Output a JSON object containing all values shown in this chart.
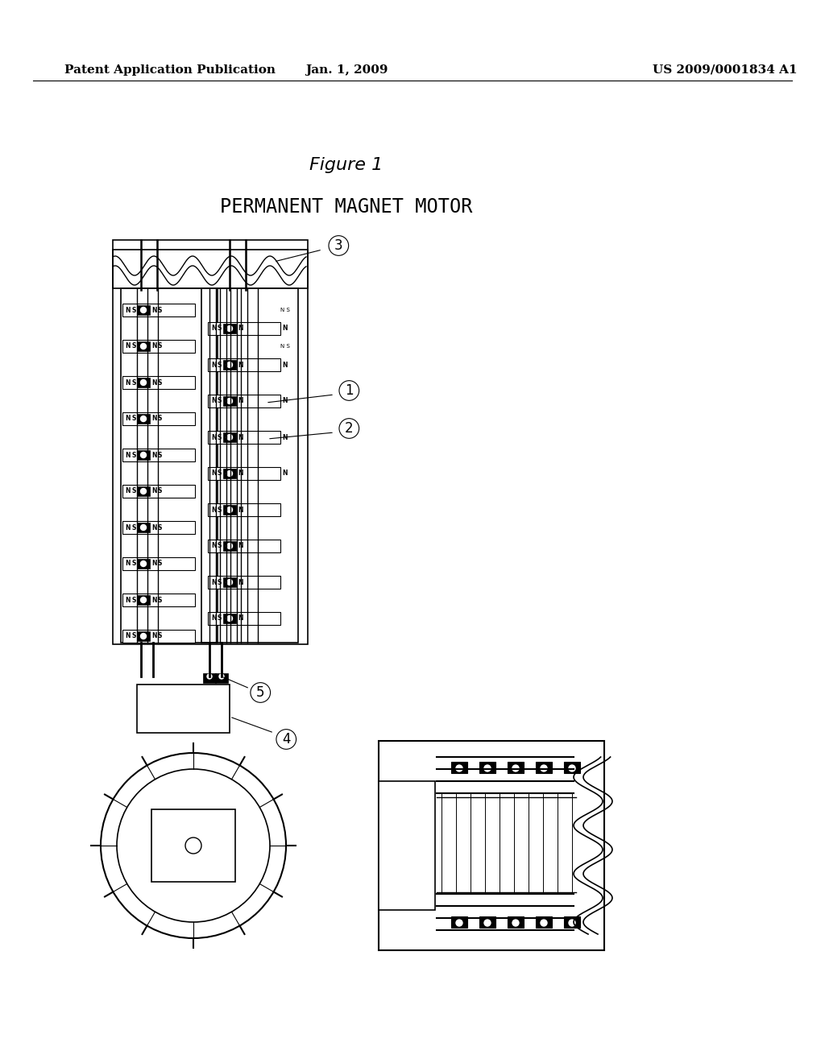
{
  "bg_color": "#ffffff",
  "header_left": "Patent Application Publication",
  "header_center": "Jan. 1, 2009",
  "header_right": "US 2009/0001834 A1",
  "figure_label": "Figure 1",
  "title": "PERMANENT MAGNET MOTOR",
  "callout_labels": [
    "1",
    "2",
    "3",
    "4",
    "5"
  ]
}
